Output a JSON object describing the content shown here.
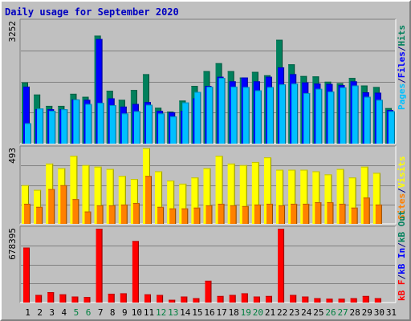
{
  "title": "Daily usage for September 2020",
  "colors": {
    "hits": "#00805c",
    "files": "#0000ff",
    "pages": "#00c0ff",
    "visits": "#ffff00",
    "sites": "#ff8000",
    "kbin": "#ff0000",
    "weekend_label": "#008040",
    "weekday_label": "#000080"
  },
  "chart_data": [
    {
      "type": "bar",
      "panel": "top",
      "ymax_label": "3252",
      "ymax": 3252,
      "legend": [
        "Pages",
        "/",
        "Files",
        "/",
        "Hits"
      ],
      "categories": [
        "1",
        "2",
        "3",
        "4",
        "5",
        "6",
        "7",
        "8",
        "9",
        "10",
        "11",
        "12",
        "13",
        "14",
        "15",
        "16",
        "17",
        "18",
        "19",
        "20",
        "21",
        "22",
        "23",
        "24",
        "25",
        "26",
        "27",
        "28",
        "29",
        "30",
        "31"
      ],
      "series": [
        {
          "name": "Hits",
          "values": [
            1620,
            1300,
            1000,
            1000,
            1320,
            1240,
            2860,
            1400,
            1160,
            1420,
            1840,
            950,
            850,
            1140,
            1530,
            1920,
            2130,
            1920,
            1750,
            1900,
            1810,
            2750,
            2100,
            1790,
            1780,
            1640,
            1600,
            1740,
            1540,
            1500,
            940
          ]
        },
        {
          "name": "Files",
          "values": [
            1510,
            910,
            910,
            910,
            1170,
            1160,
            2770,
            1200,
            980,
            1050,
            1100,
            870,
            830,
            870,
            1200,
            1530,
            1770,
            1650,
            1750,
            1650,
            1770,
            2020,
            1840,
            1620,
            1590,
            1580,
            1550,
            1650,
            1360,
            1350,
            890
          ]
        },
        {
          "name": "Pages",
          "values": [
            540,
            930,
            870,
            910,
            1170,
            1050,
            1080,
            1020,
            800,
            860,
            1030,
            800,
            720,
            1090,
            1370,
            1510,
            1740,
            1510,
            1500,
            1410,
            1500,
            1570,
            1590,
            1340,
            1450,
            1380,
            1490,
            1540,
            1240,
            1160,
            860
          ]
        }
      ]
    },
    {
      "type": "bar",
      "panel": "middle",
      "ymax_label": "493",
      "ymax": 493,
      "legend": [
        "Sites",
        "/",
        "Visits"
      ],
      "categories": [
        "1",
        "2",
        "3",
        "4",
        "5",
        "6",
        "7",
        "8",
        "9",
        "10",
        "11",
        "12",
        "13",
        "14",
        "15",
        "16",
        "17",
        "18",
        "19",
        "20",
        "21",
        "22",
        "23",
        "24",
        "25",
        "26",
        "27",
        "28",
        "29",
        "30",
        "31"
      ],
      "series": [
        {
          "name": "Visits",
          "values": [
            250,
            220,
            390,
            360,
            440,
            380,
            370,
            355,
            310,
            290,
            490,
            340,
            280,
            260,
            300,
            360,
            440,
            390,
            380,
            400,
            430,
            350,
            350,
            350,
            340,
            320,
            355,
            300,
            370,
            330,
            0
          ]
        },
        {
          "name": "Sites",
          "values": [
            130,
            110,
            225,
            250,
            160,
            80,
            120,
            120,
            125,
            135,
            310,
            110,
            100,
            100,
            105,
            120,
            130,
            120,
            115,
            125,
            130,
            120,
            130,
            130,
            140,
            140,
            130,
            105,
            170,
            125,
            0
          ]
        }
      ]
    },
    {
      "type": "bar",
      "panel": "bottom",
      "ymax_label": "678395",
      "ymax": 678395,
      "legend": [
        "kB F",
        "/",
        "kB In",
        "/",
        "kB Out"
      ],
      "categories": [
        "1",
        "2",
        "3",
        "4",
        "5",
        "6",
        "7",
        "8",
        "9",
        "10",
        "11",
        "12",
        "13",
        "14",
        "15",
        "16",
        "17",
        "18",
        "19",
        "20",
        "21",
        "22",
        "23",
        "24",
        "25",
        "26",
        "27",
        "28",
        "29",
        "30",
        "31"
      ],
      "series": [
        {
          "name": "kB F",
          "values": [
            505000,
            70000,
            95000,
            75000,
            55000,
            50000,
            678395,
            80000,
            85000,
            565000,
            75000,
            70000,
            25000,
            55000,
            40000,
            200000,
            60000,
            70000,
            85000,
            55000,
            60000,
            678395,
            70000,
            55000,
            40000,
            35000,
            35000,
            40000,
            60000,
            40000,
            0
          ]
        }
      ]
    }
  ],
  "x_label_colors": [
    "weekday",
    "weekday",
    "weekday",
    "weekday",
    "weekend",
    "weekend",
    "weekday",
    "weekday",
    "weekday",
    "weekday",
    "weekday",
    "weekend",
    "weekend",
    "weekday",
    "weekday",
    "weekday",
    "weekday",
    "weekday",
    "weekend",
    "weekend",
    "weekday",
    "weekday",
    "weekday",
    "weekday",
    "weekday",
    "weekend",
    "weekend",
    "weekday",
    "weekday",
    "weekday",
    "weekday"
  ]
}
